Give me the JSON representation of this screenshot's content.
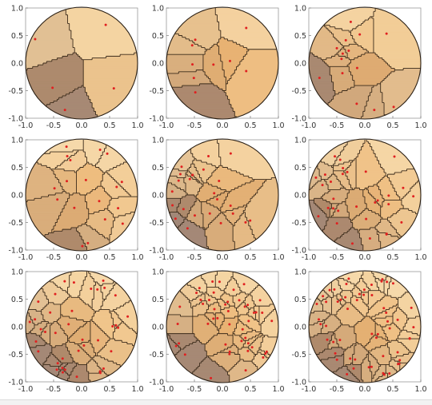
{
  "chart_data": [
    {
      "type": "scatter",
      "n_points": 5,
      "xlim": [
        -1,
        1
      ],
      "ylim": [
        -1,
        1
      ],
      "xticks": [
        "-1.0",
        "-0.5",
        "0.0",
        "0.5",
        "1.0"
      ],
      "yticks": [
        "-1.0",
        "-0.5",
        "0.0",
        "0.5",
        "1.0"
      ],
      "seed": 11,
      "grid": false,
      "legend": "none",
      "colors": {
        "point": "#e02020",
        "cell_light": "#f7ddb0",
        "cell_dark": "#8c8590"
      }
    },
    {
      "type": "scatter",
      "n_points": 9,
      "xlim": [
        -1,
        1
      ],
      "ylim": [
        -1,
        1
      ],
      "xticks": [
        "-1.0",
        "-0.5",
        "0.0",
        "0.5",
        "1.0"
      ],
      "yticks": [
        "-1.0",
        "-0.5",
        "0.0",
        "0.5",
        "1.0"
      ],
      "seed": 23,
      "grid": false,
      "legend": "none",
      "colors": {
        "point": "#e02020",
        "cell_light": "#f7ddb0",
        "cell_dark": "#8c8590"
      }
    },
    {
      "type": "scatter",
      "n_points": 14,
      "xlim": [
        -1,
        1
      ],
      "ylim": [
        -1,
        1
      ],
      "xticks": [
        "-1.0",
        "-0.5",
        "0.0",
        "0.5",
        "1.0"
      ],
      "yticks": [
        "-1.0",
        "-0.5",
        "0.0",
        "0.5",
        "1.0"
      ],
      "seed": 37,
      "grid": false,
      "legend": "none",
      "colors": {
        "point": "#e02020",
        "cell_light": "#f7ddb0",
        "cell_dark": "#8c8590"
      }
    },
    {
      "type": "scatter",
      "n_points": 18,
      "xlim": [
        -1,
        1
      ],
      "ylim": [
        -1,
        1
      ],
      "xticks": [
        "-1.0",
        "-0.5",
        "0.0",
        "0.5",
        "1.0"
      ],
      "yticks": [
        "-1.0",
        "-0.5",
        "0.0",
        "0.5",
        "1.0"
      ],
      "seed": 41,
      "grid": false,
      "legend": "none",
      "colors": {
        "point": "#e02020",
        "cell_light": "#f7ddb0",
        "cell_dark": "#8c8590"
      }
    },
    {
      "type": "scatter",
      "n_points": 24,
      "xlim": [
        -1,
        1
      ],
      "ylim": [
        -1,
        1
      ],
      "xticks": [
        "-1.0",
        "-0.5",
        "0.0",
        "0.5",
        "1.0"
      ],
      "yticks": [
        "-1.0",
        "-0.5",
        "0.0",
        "0.5",
        "1.0"
      ],
      "seed": 53,
      "grid": false,
      "legend": "none",
      "colors": {
        "point": "#e02020",
        "cell_light": "#f7ddb0",
        "cell_dark": "#8c8590"
      }
    },
    {
      "type": "scatter",
      "n_points": 30,
      "xlim": [
        -1,
        1
      ],
      "ylim": [
        -1,
        1
      ],
      "xticks": [
        "-1.0",
        "-0.5",
        "0.0",
        "0.5",
        "1.0"
      ],
      "yticks": [
        "-1.0",
        "-0.5",
        "0.0",
        "0.5",
        "1.0"
      ],
      "seed": 67,
      "grid": false,
      "legend": "none",
      "colors": {
        "point": "#e02020",
        "cell_light": "#f7ddb0",
        "cell_dark": "#8c8590"
      }
    },
    {
      "type": "scatter",
      "n_points": 38,
      "xlim": [
        -1,
        1
      ],
      "ylim": [
        -1,
        1
      ],
      "xticks": [
        "-1.0",
        "-0.5",
        "0.0",
        "0.5",
        "1.0"
      ],
      "yticks": [
        "-1.0",
        "-0.5",
        "0.0",
        "0.5",
        "1.0"
      ],
      "seed": 79,
      "grid": false,
      "legend": "none",
      "colors": {
        "point": "#e02020",
        "cell_light": "#f7ddb0",
        "cell_dark": "#8c8590"
      }
    },
    {
      "type": "scatter",
      "n_points": 46,
      "xlim": [
        -1,
        1
      ],
      "ylim": [
        -1,
        1
      ],
      "xticks": [
        "-1.0",
        "-0.5",
        "0.0",
        "0.5",
        "1.0"
      ],
      "yticks": [
        "-1.0",
        "-0.5",
        "0.0",
        "0.5",
        "1.0"
      ],
      "seed": 83,
      "grid": false,
      "legend": "none",
      "colors": {
        "point": "#e02020",
        "cell_light": "#f7ddb0",
        "cell_dark": "#8c8590"
      }
    },
    {
      "type": "scatter",
      "n_points": 55,
      "xlim": [
        -1,
        1
      ],
      "ylim": [
        -1,
        1
      ],
      "xticks": [
        "-1.0",
        "-0.5",
        "0.0",
        "0.5",
        "1.0"
      ],
      "yticks": [
        "-1.0",
        "-0.5",
        "0.0",
        "0.5",
        "1.0"
      ],
      "seed": 97,
      "grid": false,
      "legend": "none",
      "colors": {
        "point": "#e02020",
        "cell_light": "#f7ddb0",
        "cell_dark": "#8c8590"
      }
    }
  ]
}
